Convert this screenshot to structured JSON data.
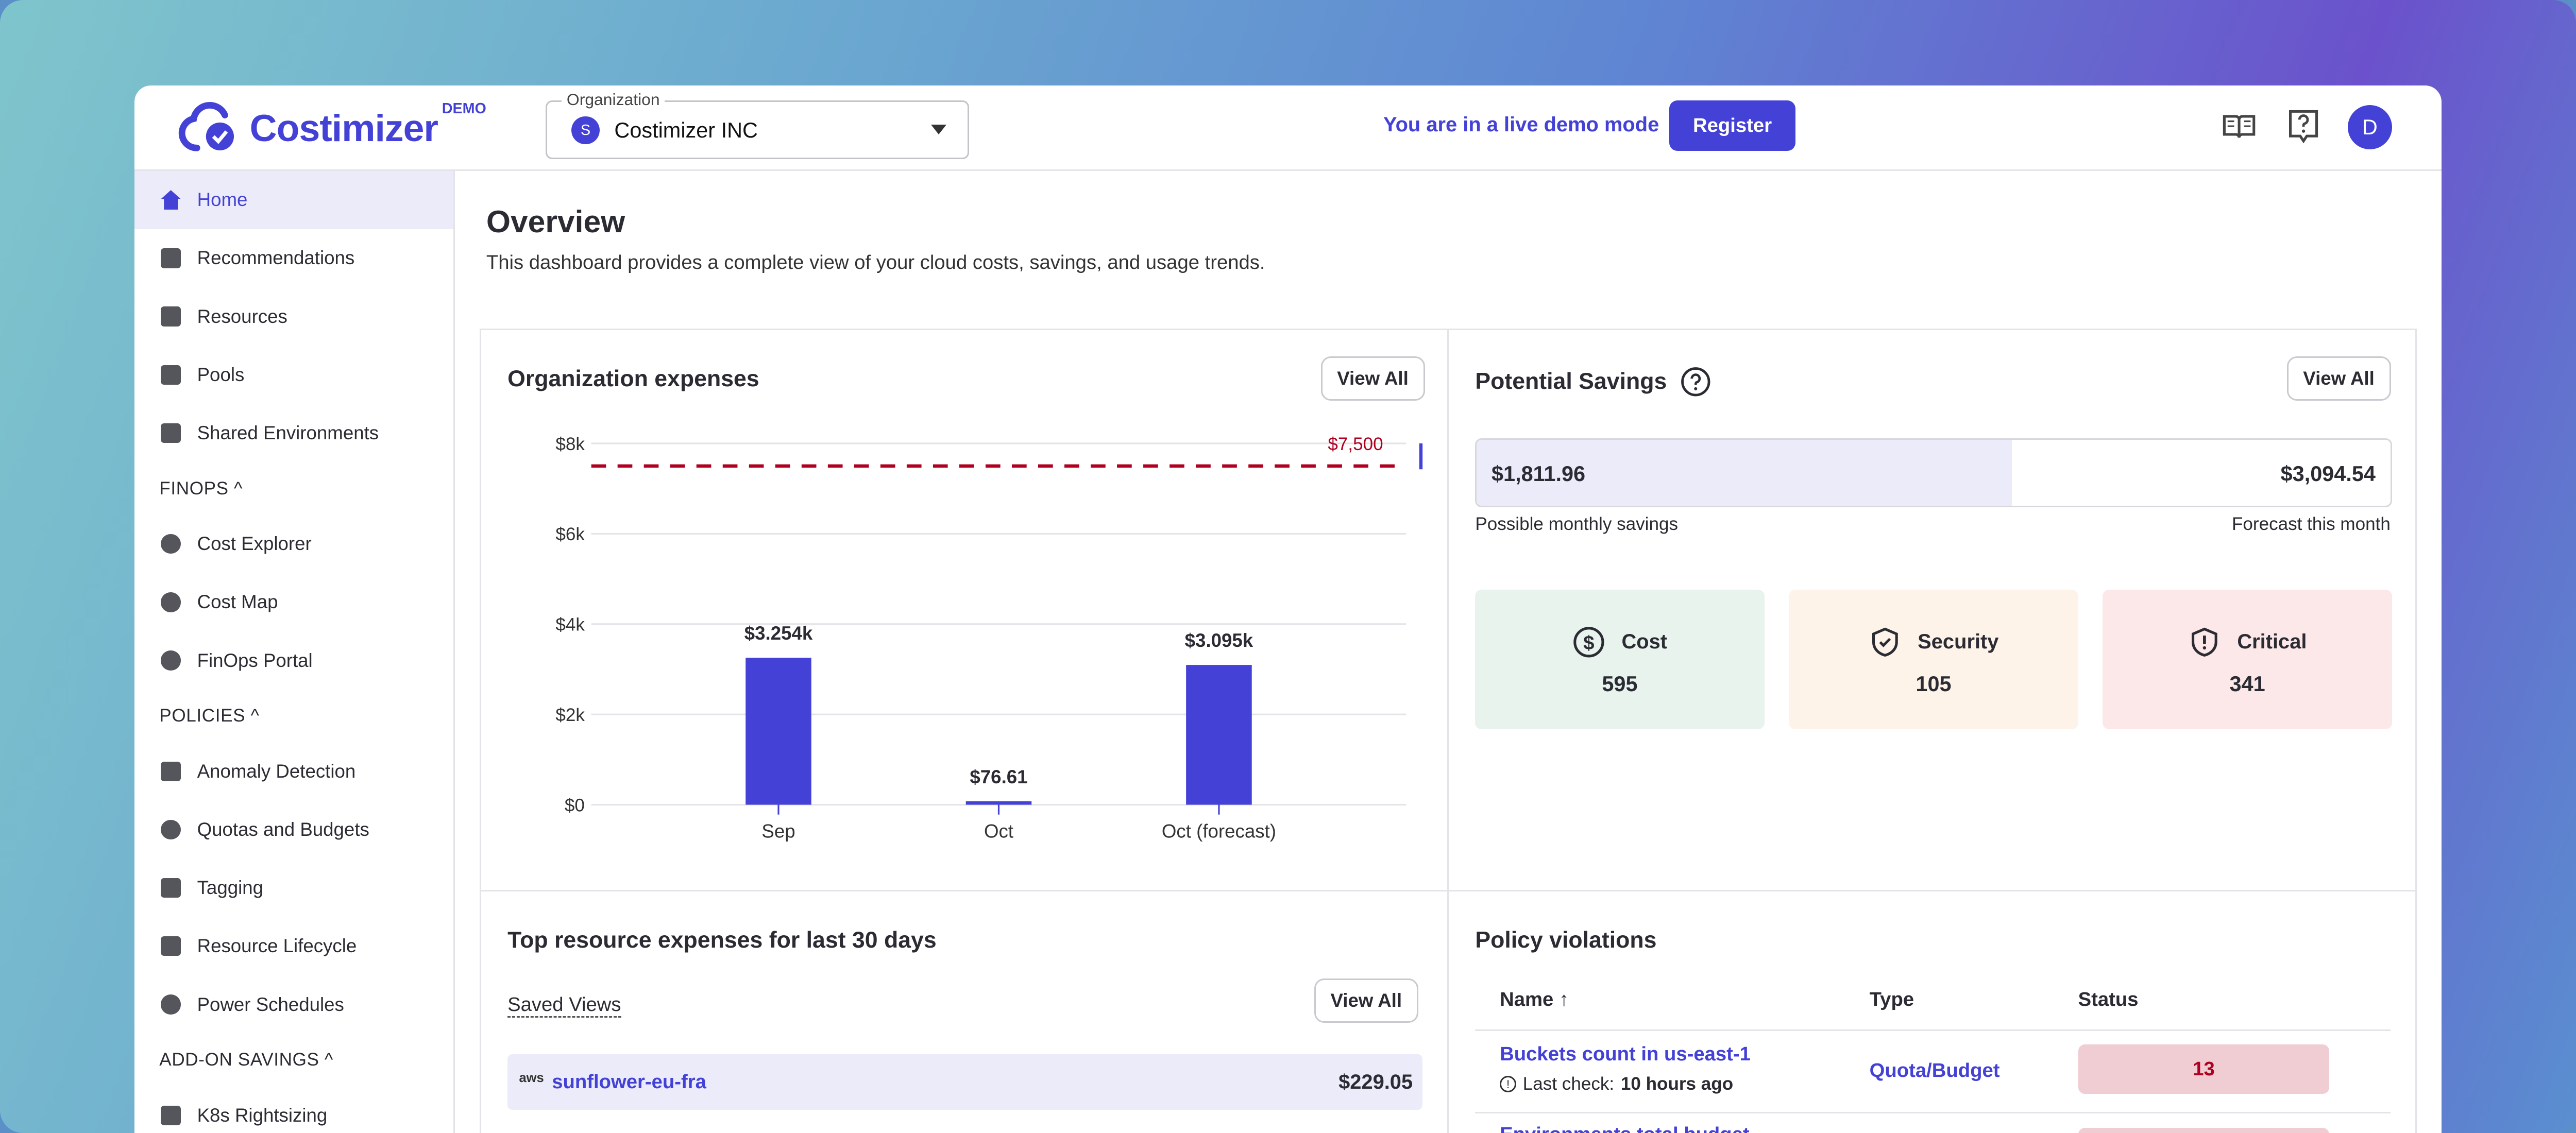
{
  "header": {
    "logo_text": "Costimizer",
    "logo_badge": "DEMO",
    "org_label": "Organization",
    "org_avatar": "S",
    "org_value": "Costimizer INC",
    "demo_mode_text": "You are in a live demo mode",
    "register_label": "Register",
    "avatar_initial": "D",
    "icons": [
      "book-icon",
      "help-icon"
    ]
  },
  "sidebar": {
    "items": [
      {
        "label": "Home",
        "icon": "home-icon",
        "active": true
      },
      {
        "label": "Recommendations",
        "icon": "thumb-up-icon"
      },
      {
        "label": "Resources",
        "icon": "bar-chart-icon"
      },
      {
        "label": "Pools",
        "icon": "calculator-icon"
      },
      {
        "label": "Shared Environments",
        "icon": "folder-icon"
      }
    ],
    "finops_label": "FINOPS ^",
    "finops": [
      {
        "label": "Cost Explorer",
        "icon": "compass-icon"
      },
      {
        "label": "Cost Map",
        "icon": "globe-icon"
      },
      {
        "label": "FinOps Portal",
        "icon": "dollar-icon"
      }
    ],
    "policies_label": "POLICIES ^",
    "policies": [
      {
        "label": "Anomaly Detection",
        "icon": "chart-icon"
      },
      {
        "label": "Quotas and Budgets",
        "icon": "coins-icon"
      },
      {
        "label": "Tagging",
        "icon": "hash-icon"
      },
      {
        "label": "Resource Lifecycle",
        "icon": "checklist-icon"
      },
      {
        "label": "Power Schedules",
        "icon": "clock-icon"
      }
    ],
    "addon_label": "ADD-ON SAVINGS ^",
    "addon": [
      {
        "label": "K8s Rightsizing",
        "icon": "cube-icon"
      }
    ]
  },
  "overview": {
    "title": "Overview",
    "description": "This dashboard provides a complete view of your cloud costs, savings, and usage trends."
  },
  "expenses": {
    "title": "Organization expenses",
    "view_all": "View All"
  },
  "chart_data": {
    "type": "bar",
    "categories": [
      "Sep",
      "Oct",
      "Oct (forecast)"
    ],
    "values": [
      3254,
      76.61,
      3095
    ],
    "data_labels": [
      "$3.254k",
      "$76.61",
      "$3.095k"
    ],
    "ylim": [
      0,
      8000
    ],
    "yticks": [
      0,
      2000,
      4000,
      6000,
      8000
    ],
    "ytick_labels": [
      "$0",
      "$2k",
      "$4k",
      "$6k",
      "$8k"
    ],
    "threshold": {
      "value": 7500,
      "label": "$7,500",
      "color": "#b00020"
    },
    "bar_color": "#4341d6",
    "grid": true
  },
  "savings": {
    "title": "Potential Savings",
    "view_all": "View All",
    "possible_value": "$1,811.96",
    "possible_label": "Possible monthly savings",
    "forecast_value": "$3,094.54",
    "forecast_label": "Forecast this month",
    "fraction": 0.5855,
    "tiles": [
      {
        "label": "Cost",
        "count": "595",
        "icon": "dollar-circle-icon",
        "bg": "#e8f3ed"
      },
      {
        "label": "Security",
        "count": "105",
        "icon": "shield-check-icon",
        "bg": "#fdf3e8"
      },
      {
        "label": "Critical",
        "count": "341",
        "icon": "shield-alert-icon",
        "bg": "#fce8e8"
      }
    ]
  },
  "top_resources": {
    "title": "Top resource expenses for last 30 days",
    "saved_views": "Saved Views",
    "view_all": "View All",
    "rows": [
      {
        "provider": "aws",
        "name": "sunflower-eu-fra",
        "cost": "$229.05"
      }
    ]
  },
  "policy": {
    "title": "Policy violations",
    "columns": [
      "Name",
      "Type",
      "Status"
    ],
    "rows": [
      {
        "name": "Buckets count in us-east-1",
        "last_check_label": "Last check:",
        "last_check": "10 hours ago",
        "type": "Quota/Budget",
        "status": "13"
      },
      {
        "name": "Environments total budget"
      }
    ]
  }
}
